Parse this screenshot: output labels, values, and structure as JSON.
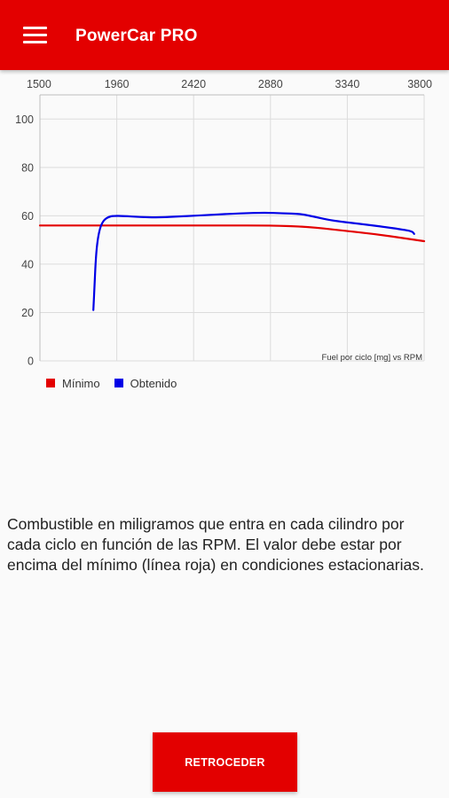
{
  "app": {
    "title": "PowerCar PRO",
    "menu_icon": "hamburger-menu-icon"
  },
  "chart_data": {
    "type": "line",
    "description_label": "Fuel por ciclo [mg] vs RPM",
    "xlim": [
      1500,
      3800
    ],
    "ylim": [
      0,
      110
    ],
    "x_ticks": [
      1500,
      1960,
      2420,
      2880,
      3340,
      3800
    ],
    "y_ticks": [
      0,
      20,
      40,
      60,
      80,
      100
    ],
    "grid": true,
    "legend_position": "bottom-left",
    "series": [
      {
        "name": "Mínimo",
        "color": "#e30000",
        "x": [
          1500,
          1700,
          2000,
          2300,
          2600,
          2880,
          3100,
          3300,
          3500,
          3700,
          3800
        ],
        "y": [
          56,
          56,
          56,
          56,
          56,
          56,
          55.5,
          54,
          52.5,
          50.5,
          49.5
        ]
      },
      {
        "name": "Obtenido",
        "color": "#0000e6",
        "x": [
          1820,
          1828,
          1835,
          1845,
          1858,
          1872,
          1888,
          1910,
          1940,
          2000,
          2100,
          2200,
          2300,
          2420,
          2550,
          2700,
          2850,
          2950,
          3060,
          3150,
          3250,
          3400,
          3550,
          3680,
          3730,
          3740
        ],
        "y": [
          21,
          33,
          43,
          50,
          54.5,
          57,
          58.5,
          59.5,
          60,
          59.9,
          59.5,
          59.3,
          59.6,
          60,
          60.5,
          61,
          61.3,
          61,
          60.8,
          59.5,
          58,
          56.8,
          55.5,
          54.2,
          53.5,
          52.5
        ]
      }
    ]
  },
  "legend": {
    "minimo_label": "Mínimo",
    "obtenido_label": "Obtenido"
  },
  "description": "Combustible en miligramos que entra en cada cilindro por cada ciclo en función de las RPM. El valor debe estar por encima del mínimo (línea roja) en condiciones estacionarias.",
  "buttons": {
    "back_label": "RETROCEDER"
  }
}
